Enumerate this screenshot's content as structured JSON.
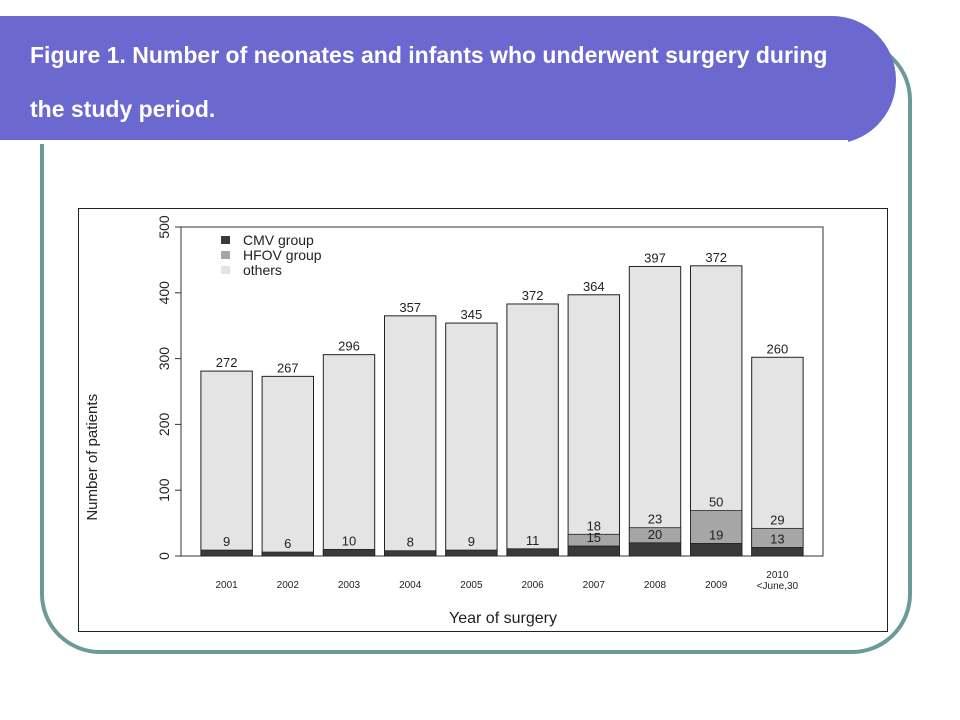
{
  "slide": {
    "title": "Figure 1. Number of neonates and infants who underwent surgery during the study period."
  },
  "colors": {
    "title_band": "#6b68cf",
    "frame": "#6b9a99",
    "cmv": "#3a3a3a",
    "hfov": "#a6a6a6",
    "others": "#e4e4e4"
  },
  "chart_data": {
    "type": "bar",
    "stacked": true,
    "categories": [
      "2001",
      "2002",
      "2003",
      "2004",
      "2005",
      "2006",
      "2007",
      "2008",
      "2009",
      "2010 <June,30"
    ],
    "category_lines": [
      [
        "2001"
      ],
      [
        "2002"
      ],
      [
        "2003"
      ],
      [
        "2004"
      ],
      [
        "2005"
      ],
      [
        "2006"
      ],
      [
        "2007"
      ],
      [
        "2008"
      ],
      [
        "2009"
      ],
      [
        "2010",
        "<June,30"
      ]
    ],
    "series": [
      {
        "name": "CMV group",
        "values": [
          9,
          6,
          10,
          8,
          9,
          11,
          15,
          20,
          19,
          13
        ]
      },
      {
        "name": "HFOV group",
        "values": [
          0,
          0,
          0,
          0,
          0,
          0,
          18,
          23,
          50,
          29
        ]
      },
      {
        "name": "others",
        "values": [
          272,
          267,
          296,
          357,
          345,
          372,
          364,
          397,
          372,
          260
        ]
      }
    ],
    "cmv_labels": [
      "9",
      "6",
      "10",
      "8",
      "9",
      "11",
      "15",
      "20",
      "19",
      "13"
    ],
    "hfov_labels": [
      "",
      "",
      "",
      "",
      "",
      "",
      "18",
      "23",
      "50",
      "29"
    ],
    "others_labels": [
      "272",
      "267",
      "296",
      "357",
      "345",
      "372",
      "364",
      "397",
      "372",
      "260"
    ],
    "xlabel": "Year of surgery",
    "ylabel": "Number of patients",
    "ylim": [
      0,
      500
    ],
    "yticks": [
      0,
      100,
      200,
      300,
      400,
      500
    ],
    "legend_position": "top-left",
    "grid": false
  }
}
